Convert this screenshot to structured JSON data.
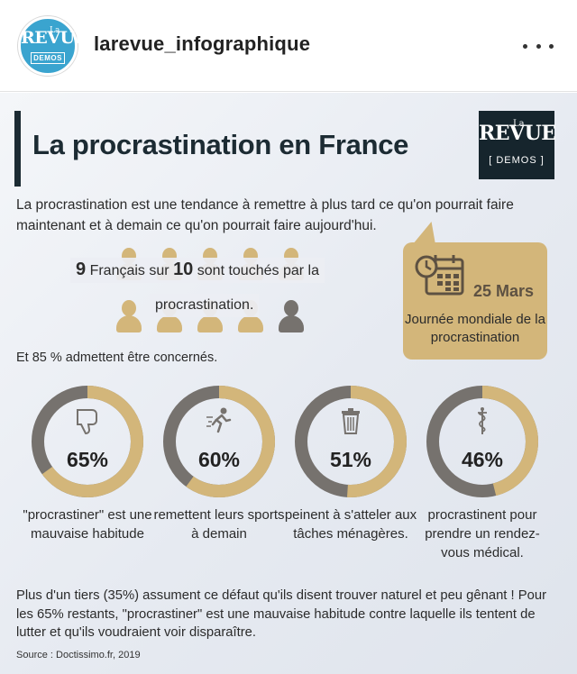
{
  "header": {
    "avatar": {
      "la": "La",
      "revue": "REVUE",
      "demos": "DEMOS"
    },
    "username": "larevue_infographique"
  },
  "infographic": {
    "title": "La procrastination en France",
    "logo": {
      "la": "La",
      "revue": "REVUE",
      "demos": "[ DEMOS ]"
    },
    "intro": "La procrastination est une tendance à remettre à plus tard ce qu'on pourrait faire maintenant et à demain ce qu'on pourrait faire aujourd'hui.",
    "stat": {
      "num1": "9",
      "text1": "Français sur",
      "num2": "10",
      "text2": "sont touchés par la",
      "line2": "procrastination."
    },
    "people": {
      "total": 10,
      "affected": 9
    },
    "date_callout": {
      "date": "25 Mars",
      "label": "Journée mondiale de la procrastination"
    },
    "admit": "Et 85 % admettent être concernés.",
    "donuts": [
      {
        "value": 65,
        "pct_label": "65%",
        "caption": "\"procrastiner\" est une mauvaise habitude",
        "icon": "thumbs-down-icon"
      },
      {
        "value": 60,
        "pct_label": "60%",
        "caption": "remettent leurs sports à demain",
        "icon": "running-icon"
      },
      {
        "value": 51,
        "pct_label": "51%",
        "caption": "peinent à s'atteler aux tâches ménagères.",
        "icon": "trash-icon"
      },
      {
        "value": 46,
        "pct_label": "46%",
        "caption": "procrastinent pour prendre un rendez-vous médical.",
        "icon": "caduceus-icon"
      }
    ],
    "summary": "Plus d'un tiers (35%) assument ce défaut qu'ils disent trouver naturel et peu gênant ! Pour les 65% restants, \"procrastiner\" est une mauvaise habitude contre laquelle ils tentent de lutter et qu'ils voudraient voir disparaître.",
    "source": "Source : Doctissimo.fr, 2019",
    "colors": {
      "gold": "#d3b67a",
      "grey": "#76726e",
      "navy": "#1c2b33"
    }
  }
}
